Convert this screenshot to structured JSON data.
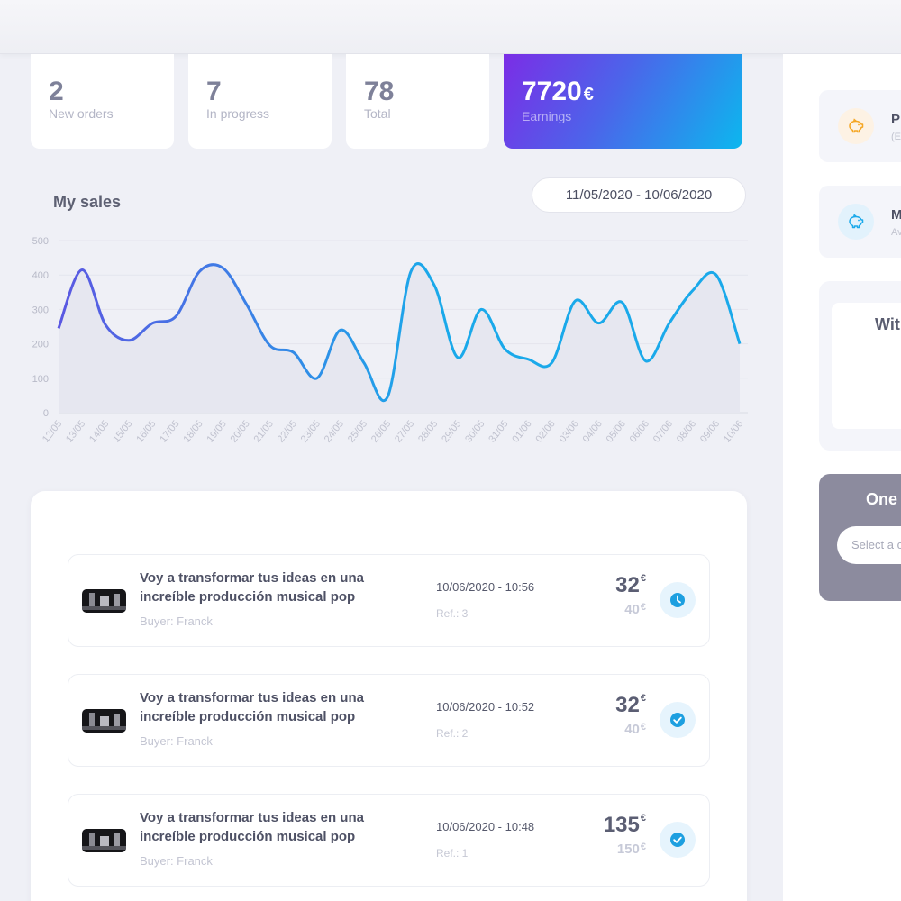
{
  "stats": [
    {
      "value": "2",
      "label": "New orders"
    },
    {
      "value": "7",
      "label": "In progress"
    },
    {
      "value": "78",
      "label": "Total"
    }
  ],
  "earnings": {
    "value": "7720",
    "currency": "€",
    "label": "Earnings"
  },
  "sales": {
    "title": "My sales",
    "date_range": "11/05/2020 - 10/06/2020"
  },
  "chart_data": {
    "type": "area",
    "title": "My sales",
    "xlabel": "",
    "ylabel": "",
    "ylim": [
      0,
      500
    ],
    "yticks": [
      0,
      100,
      200,
      300,
      400,
      500
    ],
    "grid": true,
    "categories": [
      "12/05",
      "13/05",
      "14/05",
      "15/05",
      "16/05",
      "17/05",
      "18/05",
      "19/05",
      "20/05",
      "21/05",
      "22/05",
      "23/05",
      "24/05",
      "25/05",
      "26/05",
      "27/05",
      "28/05",
      "29/05",
      "30/05",
      "31/05",
      "01/06",
      "02/06",
      "03/06",
      "04/06",
      "05/06",
      "06/06",
      "07/06",
      "08/06",
      "09/06",
      "10/06"
    ],
    "values": [
      245,
      415,
      255,
      210,
      260,
      280,
      410,
      420,
      315,
      195,
      175,
      100,
      240,
      145,
      45,
      410,
      370,
      160,
      300,
      185,
      155,
      145,
      325,
      260,
      320,
      150,
      260,
      355,
      400,
      200
    ],
    "colors": {
      "line_start": "#5b58e2",
      "line_end": "#1aa9ea",
      "fill": "#e6e7f0"
    }
  },
  "orders": [
    {
      "title": "Voy a transformar tus ideas en una increíble producción musical pop",
      "buyer": "Buyer: Franck",
      "date": "10/06/2020 - 10:56",
      "ref": "Ref.: 3",
      "price": "32",
      "old_price": "40",
      "currency": "€",
      "status_icon": "clock-icon"
    },
    {
      "title": "Voy a transformar tus ideas en una increíble producción musical pop",
      "buyer": "Buyer: Franck",
      "date": "10/06/2020 - 10:52",
      "ref": "Ref.: 2",
      "price": "32",
      "old_price": "40",
      "currency": "€",
      "status_icon": "check-circle-icon"
    },
    {
      "title": "Voy a transformar tus ideas en una increíble producción musical pop",
      "buyer": "Buyer: Franck",
      "date": "10/06/2020 - 10:48",
      "ref": "Ref.: 1",
      "price": "135",
      "old_price": "150",
      "currency": "€",
      "status_icon": "check-circle-icon"
    }
  ],
  "sidebar": {
    "card1": {
      "title": "P",
      "sub": "(E",
      "icon": "piggy-bank-icon",
      "color": "#f5a623"
    },
    "card2": {
      "title": "M",
      "sub": "Av",
      "icon": "piggy-bank-icon",
      "color": "#1aa9ea"
    },
    "widget_title": "Wit",
    "dark_title": "One",
    "dark_placeholder": "Select a c"
  }
}
